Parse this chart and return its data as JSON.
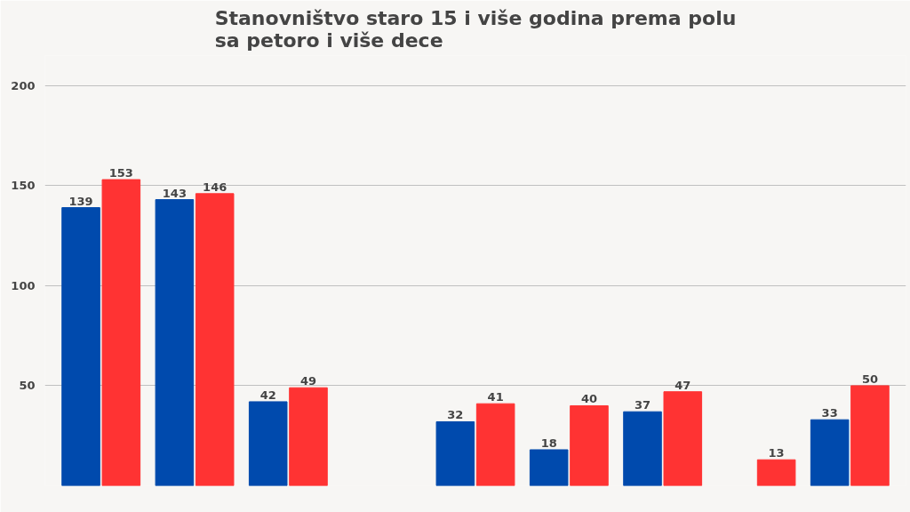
{
  "chart_data": {
    "type": "bar",
    "title": "Stanovništvo staro 15 i više godina prema polu\nsa petoro i više dece",
    "categories": [
      null,
      null,
      null,
      null,
      null,
      null,
      null,
      null,
      null
    ],
    "series": [
      {
        "color": "#004aad",
        "values": [
          139,
          143,
          42,
          null,
          32,
          18,
          37,
          null,
          33
        ]
      },
      {
        "color": "#ff3333",
        "values": [
          153,
          146,
          49,
          null,
          41,
          40,
          47,
          13,
          50
        ]
      }
    ],
    "ylim": [
      0,
      215
    ],
    "yticks": [
      50,
      100,
      150,
      200
    ],
    "grid": "y",
    "data_labels": true
  }
}
